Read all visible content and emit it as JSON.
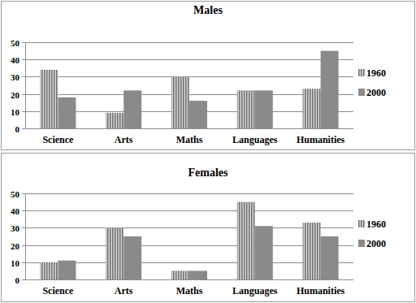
{
  "chart_data": [
    {
      "type": "bar",
      "title": "Males",
      "categories": [
        "Science",
        "Arts",
        "Maths",
        "Languages",
        "Humanities"
      ],
      "series": [
        {
          "name": "1960",
          "color": "#6e6e6e",
          "values": [
            34,
            9,
            30,
            22,
            23
          ]
        },
        {
          "name": "2000",
          "color": "#8a8a8a",
          "values": [
            18,
            22,
            16,
            22,
            45
          ]
        }
      ],
      "ylim": [
        0,
        50
      ],
      "yticks": [
        0,
        10,
        20,
        30,
        40,
        50
      ],
      "grid": true,
      "legend": "right"
    },
    {
      "type": "bar",
      "title": "Females",
      "categories": [
        "Science",
        "Arts",
        "Maths",
        "Languages",
        "Humanities"
      ],
      "series": [
        {
          "name": "1960",
          "color": "#6e6e6e",
          "values": [
            10,
            30,
            5,
            45,
            33
          ]
        },
        {
          "name": "2000",
          "color": "#8a8a8a",
          "values": [
            11,
            25,
            5,
            31,
            25
          ]
        }
      ],
      "ylim": [
        0,
        50
      ],
      "yticks": [
        0,
        10,
        20,
        30,
        40,
        50
      ],
      "grid": true,
      "legend": "right"
    }
  ]
}
